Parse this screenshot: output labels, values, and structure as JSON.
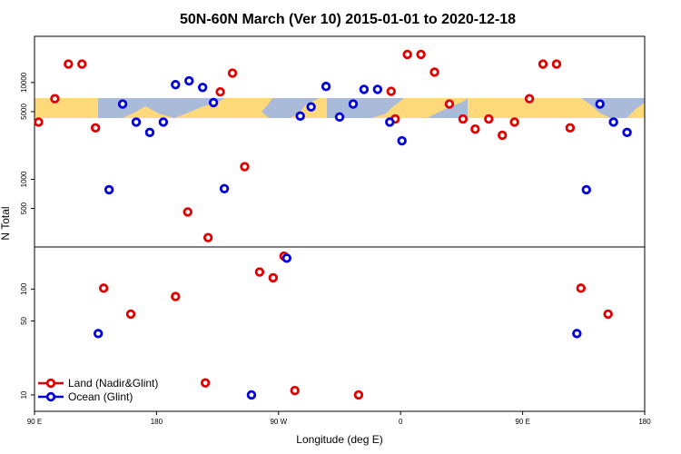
{
  "chart_data": {
    "type": "scatter",
    "title": "50N-60N March (Ver 10)   2015-01-01 to 2020-12-18",
    "xlabel": "Longitude (deg E)",
    "ylabel": "N Total",
    "x_tick_labels": [
      "90 E",
      "180",
      "90 W",
      "0",
      "90 E",
      "180"
    ],
    "y_scale": "log",
    "y_tick_labels_upper": [
      "1000",
      "5000",
      "10000",
      "500"
    ],
    "y_tick_labels_lower": [
      "10",
      "50",
      "100"
    ],
    "upper_ylim": [
      200,
      30000
    ],
    "lower_ylim": [
      7,
      250
    ],
    "colors": {
      "land": "#e00000",
      "ocean": "#0000dd",
      "map_band_ocean": "#a9bbd8",
      "map_band_land": "#ffd97a"
    },
    "legend": [
      {
        "label": "Land (Nadir&Glint)",
        "color": "#e00000"
      },
      {
        "label": "Ocean (Glint)",
        "color": "#0000dd"
      }
    ],
    "series": [
      {
        "name": "Land (Nadir&Glint)",
        "upper": [
          {
            "x": 93,
            "y": 3900
          },
          {
            "x": 105,
            "y": 6800
          },
          {
            "x": 115,
            "y": 15500
          },
          {
            "x": 125,
            "y": 15500
          },
          {
            "x": 135,
            "y": 3400
          },
          {
            "x": 203,
            "y": 460
          },
          {
            "x": 218,
            "y": 250
          },
          {
            "x": 227,
            "y": 8000
          },
          {
            "x": 236,
            "y": 12500
          },
          {
            "x": 245,
            "y": 1350
          },
          {
            "x": 353,
            "y": 8100
          },
          {
            "x": 356,
            "y": 4200
          },
          {
            "x": 365,
            "y": 19500
          },
          {
            "x": 375,
            "y": 19500
          },
          {
            "x": 385,
            "y": 12800
          },
          {
            "x": 396,
            "y": 6000
          },
          {
            "x": 406,
            "y": 4200
          },
          {
            "x": 415,
            "y": 3300
          },
          {
            "x": 425,
            "y": 4200
          },
          {
            "x": 435,
            "y": 2850
          },
          {
            "x": 444,
            "y": 3900
          },
          {
            "x": 455,
            "y": 6800
          },
          {
            "x": 465,
            "y": 15500
          },
          {
            "x": 475,
            "y": 15500
          },
          {
            "x": 485,
            "y": 3400
          }
        ],
        "lower": [
          {
            "x": 141,
            "y": 102
          },
          {
            "x": 161,
            "y": 58
          },
          {
            "x": 194,
            "y": 85
          },
          {
            "x": 216,
            "y": 13
          },
          {
            "x": 256,
            "y": 145
          },
          {
            "x": 266,
            "y": 128
          },
          {
            "x": 274,
            "y": 205
          },
          {
            "x": 282,
            "y": 11
          },
          {
            "x": 329,
            "y": 10
          },
          {
            "x": 493,
            "y": 102
          },
          {
            "x": 513,
            "y": 58
          }
        ]
      },
      {
        "name": "Ocean (Glint)",
        "upper": [
          {
            "x": 145,
            "y": 780
          },
          {
            "x": 155,
            "y": 6000
          },
          {
            "x": 165,
            "y": 3900
          },
          {
            "x": 175,
            "y": 3050
          },
          {
            "x": 185,
            "y": 3900
          },
          {
            "x": 194,
            "y": 9500
          },
          {
            "x": 204,
            "y": 10400
          },
          {
            "x": 214,
            "y": 8900
          },
          {
            "x": 222,
            "y": 6200
          },
          {
            "x": 230,
            "y": 800
          },
          {
            "x": 286,
            "y": 4500
          },
          {
            "x": 294,
            "y": 5600
          },
          {
            "x": 305,
            "y": 9100
          },
          {
            "x": 315,
            "y": 4400
          },
          {
            "x": 325,
            "y": 6000
          },
          {
            "x": 333,
            "y": 8500
          },
          {
            "x": 343,
            "y": 8500
          },
          {
            "x": 352,
            "y": 3900
          },
          {
            "x": 361,
            "y": 2500
          },
          {
            "x": 497,
            "y": 780
          },
          {
            "x": 507,
            "y": 6000
          },
          {
            "x": 517,
            "y": 3900
          },
          {
            "x": 527,
            "y": 3050
          }
        ],
        "lower": [
          {
            "x": 137,
            "y": 38
          },
          {
            "x": 276,
            "y": 196
          },
          {
            "x": 250,
            "y": 10
          },
          {
            "x": 490,
            "y": 38
          }
        ]
      }
    ]
  }
}
